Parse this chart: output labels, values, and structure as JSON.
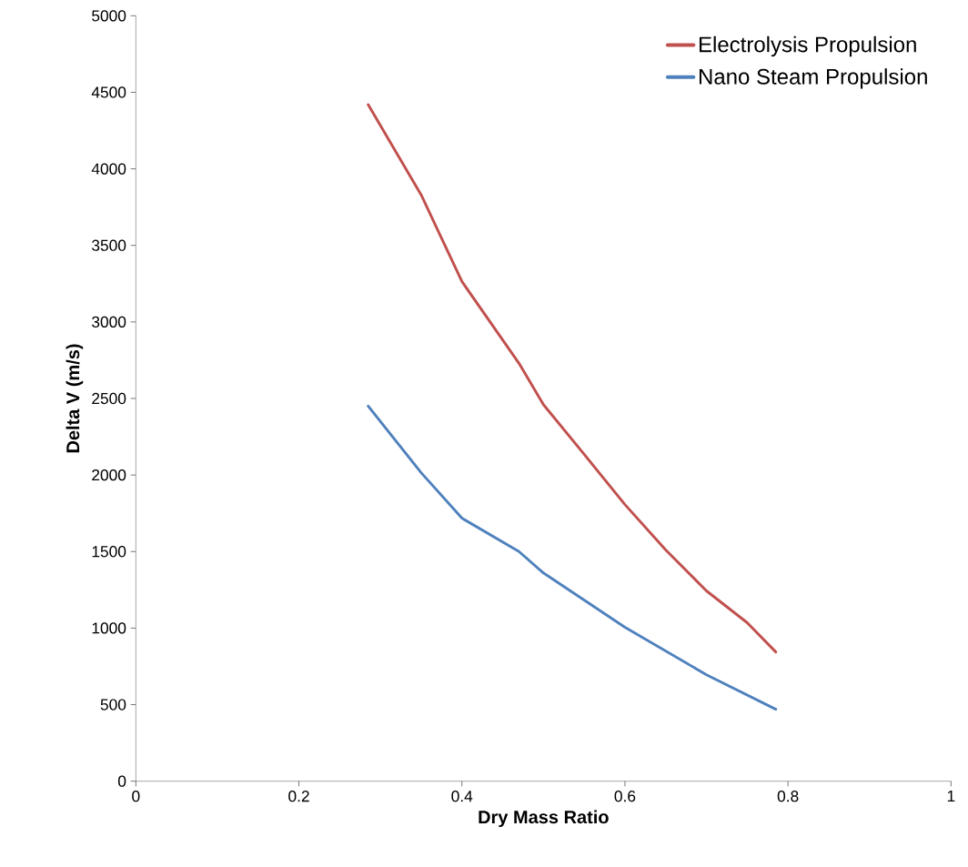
{
  "chart_data": {
    "type": "line",
    "xlabel": "Dry Mass Ratio",
    "ylabel": "Delta V (m/s)",
    "xlim": [
      0,
      1
    ],
    "ylim": [
      0,
      5000
    ],
    "xticks": [
      0,
      0.2,
      0.4,
      0.6,
      0.8,
      1
    ],
    "yticks": [
      0,
      500,
      1000,
      1500,
      2000,
      2500,
      3000,
      3500,
      4000,
      4500,
      5000
    ],
    "grid": false,
    "legend": "top right",
    "marker": "none",
    "line_style": "solid",
    "series": [
      {
        "name": "Electrolysis Propulsion",
        "color": "#c0504d",
        "x": [
          0.285,
          0.35,
          0.4,
          0.47,
          0.5,
          0.55,
          0.6,
          0.65,
          0.7,
          0.75,
          0.785
        ],
        "values": [
          4420,
          3830,
          3264,
          2730,
          2460,
          2135,
          1807,
          1510,
          1243,
          1035,
          844
        ]
      },
      {
        "name": "Nano Steam Propulsion",
        "color": "#4f81bd",
        "x": [
          0.285,
          0.35,
          0.4,
          0.47,
          0.5,
          0.6,
          0.7,
          0.785
        ],
        "values": [
          2450,
          2015,
          1718,
          1500,
          1360,
          1005,
          695,
          470
        ]
      }
    ]
  }
}
